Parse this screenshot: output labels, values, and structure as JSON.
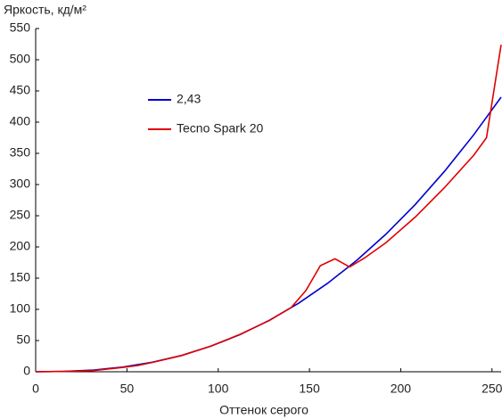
{
  "chart_data": {
    "type": "line",
    "y_label": "Яркость, кд/м²",
    "x_label": "Оттенок серого",
    "xlim": [
      0,
      255
    ],
    "xticks": [
      0,
      50,
      100,
      150,
      200,
      250
    ],
    "ylim": [
      0,
      550
    ],
    "yticks": [
      0,
      50,
      100,
      150,
      200,
      250,
      300,
      350,
      400,
      450,
      500,
      550
    ],
    "grid": false,
    "legend": "upper left",
    "series": [
      {
        "name": "2,43",
        "color": "#0000cc",
        "x": [
          0,
          16,
          32,
          48,
          64,
          80,
          96,
          112,
          128,
          144,
          160,
          176,
          192,
          208,
          224,
          240,
          255
        ],
        "values": [
          0,
          0.5,
          2.8,
          7.6,
          15.3,
          26.3,
          41,
          59.6,
          82.5,
          109.7,
          141.8,
          178.7,
          220.7,
          268.2,
          321.1,
          379.7,
          440
        ]
      },
      {
        "name": "Tecno Spark 20",
        "color": "#e00000",
        "x": [
          0,
          16,
          32,
          48,
          56,
          64,
          80,
          96,
          112,
          128,
          140,
          148,
          156,
          164,
          172,
          180,
          192,
          208,
          224,
          240,
          247,
          255
        ],
        "values": [
          0,
          0.5,
          2,
          7,
          10,
          15,
          26,
          41,
          60,
          82,
          103,
          130,
          170,
          181,
          168,
          182,
          207,
          248,
          295,
          347,
          375,
          524
        ]
      }
    ]
  }
}
